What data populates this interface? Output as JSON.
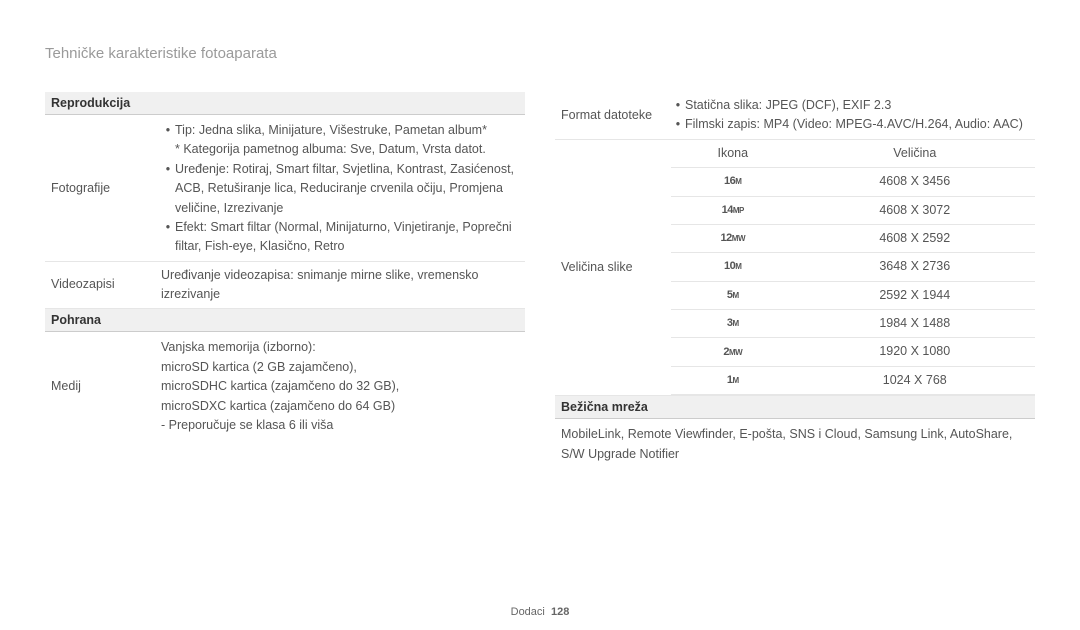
{
  "page_title": "Tehničke karakteristike fotoaparata",
  "footer_label": "Dodaci",
  "footer_page": "128",
  "left": {
    "sections": [
      {
        "header": "Reprodukcija",
        "rows": [
          {
            "label": "Fotografije",
            "bullets": [
              "Tip: Jedna slika, Minijature, Višestruke, Pametan album*",
              "Uređenje: Rotiraj, Smart filtar, Svjetlina, Kontrast, Zasićenost, ACB, Retuširanje lica, Reduciranje crvenila očiju, Promjena veličine, Izrezivanje",
              "Efekt: Smart filtar (Normal, Minijaturno, Vinjetiranje, Poprečni filtar, Fish-eye, Klasično, Retro"
            ],
            "subnote": "* Kategorija pametnog albuma: Sve, Datum, Vrsta datot."
          },
          {
            "label": "Videozapisi",
            "text": "Uređivanje videozapisa: snimanje mirne slike, vremensko izrezivanje"
          }
        ]
      },
      {
        "header": "Pohrana",
        "rows": [
          {
            "label": "Medij",
            "lines": [
              "Vanjska memorija (izborno):",
              "microSD kartica (2 GB zajamčeno),",
              "microSDHC kartica (zajamčeno do 32 GB),",
              "microSDXC kartica (zajamčeno do 64 GB)",
              "- Preporučuje se klasa 6 ili viša"
            ]
          }
        ]
      }
    ]
  },
  "right": {
    "rows": [
      {
        "label": "Format datoteke",
        "bullets": [
          "Statična slika: JPEG (DCF), EXIF 2.3",
          "Filmski zapis: MP4 (Video: MPEG-4.AVC/H.264, Audio: AAC)"
        ]
      }
    ],
    "size_table": {
      "label": "Veličina slike",
      "head": [
        "Ikona",
        "Veličina"
      ],
      "rows": [
        {
          "icon_main": "16",
          "icon_sub": "M",
          "size": "4608 X 3456"
        },
        {
          "icon_main": "14",
          "icon_sub": "MP",
          "size": "4608 X 3072"
        },
        {
          "icon_main": "12",
          "icon_sub": "MW",
          "size": "4608 X 2592"
        },
        {
          "icon_main": "10",
          "icon_sub": "M",
          "size": "3648 X 2736"
        },
        {
          "icon_main": "5",
          "icon_sub": "M",
          "size": "2592 X 1944"
        },
        {
          "icon_main": "3",
          "icon_sub": "M",
          "size": "1984 X 1488"
        },
        {
          "icon_main": "2",
          "icon_sub": "MW",
          "size": "1920 X 1080"
        },
        {
          "icon_main": "1",
          "icon_sub": "M",
          "size": "1024 X 768"
        }
      ]
    },
    "wireless": {
      "header": "Bežična mreža",
      "text": "MobileLink, Remote Viewfinder, E-pošta, SNS i Cloud, Samsung Link, AutoShare, S/W Upgrade Notifier"
    }
  }
}
